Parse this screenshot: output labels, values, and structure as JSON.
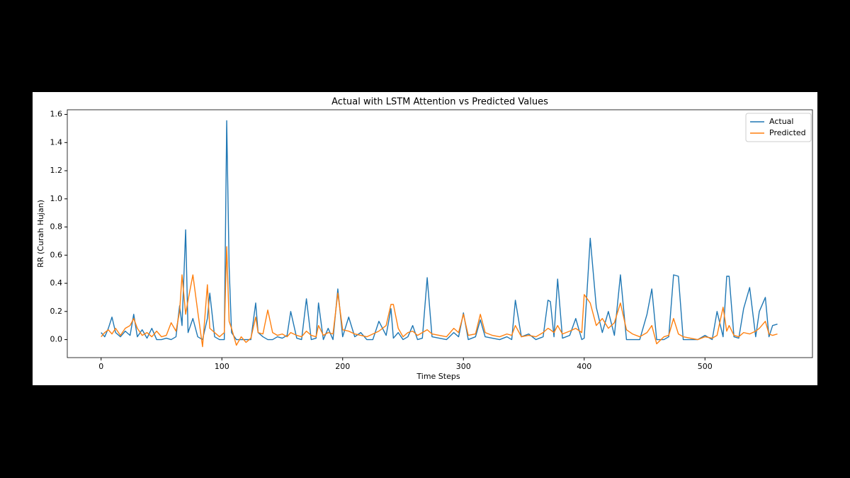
{
  "chart_data": {
    "type": "line",
    "title": "Actual with LSTM Attention vs Predicted Values",
    "x_label": "Time Steps",
    "y_label": "RR (Curah Hujan)",
    "xlim": [
      -28,
      589
    ],
    "ylim": [
      -0.128,
      1.633
    ],
    "xticks": [
      0,
      100,
      200,
      300,
      400,
      500
    ],
    "yticks": [
      {
        "value": 0,
        "label": "0.0"
      },
      0.2,
      0.4,
      0.6,
      0.8,
      {
        "value": 1,
        "label": "1.0"
      },
      1.2,
      1.4,
      1.6
    ],
    "grid": false,
    "legend": "upper right",
    "x": [
      0,
      3,
      6,
      9,
      12,
      16,
      20,
      24,
      27,
      30,
      34,
      38,
      42,
      46,
      50,
      54,
      58,
      62,
      65,
      67,
      70,
      72,
      76,
      80,
      84,
      88,
      90,
      94,
      98,
      102,
      104,
      106,
      108,
      112,
      116,
      120,
      124,
      128,
      130,
      134,
      138,
      142,
      146,
      150,
      154,
      157,
      162,
      166,
      170,
      174,
      178,
      180,
      184,
      188,
      192,
      196,
      200,
      205,
      210,
      215,
      220,
      225,
      230,
      236,
      240,
      242,
      246,
      250,
      254,
      258,
      262,
      266,
      270,
      274,
      280,
      286,
      292,
      296,
      300,
      304,
      310,
      314,
      318,
      324,
      330,
      336,
      340,
      343,
      348,
      354,
      360,
      366,
      370,
      372,
      375,
      378,
      382,
      388,
      393,
      398,
      400,
      405,
      410,
      415,
      420,
      425,
      430,
      435,
      440,
      446,
      452,
      456,
      460,
      466,
      470,
      474,
      478,
      482,
      488,
      494,
      500,
      506,
      510,
      515,
      518,
      520,
      524,
      528,
      532,
      537,
      542,
      545,
      550,
      553,
      556,
      560
    ],
    "series": [
      {
        "name": "Actual",
        "color": "#1f77b4",
        "values": [
          0.05,
          0.02,
          0.08,
          0.16,
          0.05,
          0.02,
          0.06,
          0.03,
          0.18,
          0.02,
          0.07,
          0.01,
          0.08,
          0.0,
          0.0,
          0.01,
          0.0,
          0.02,
          0.24,
          0.1,
          0.78,
          0.05,
          0.15,
          0.02,
          0.0,
          0.15,
          0.33,
          0.02,
          0.0,
          0.0,
          1.555,
          0.52,
          0.05,
          0.0,
          0.0,
          0.0,
          0.0,
          0.26,
          0.05,
          0.02,
          0.0,
          0.0,
          0.02,
          0.01,
          0.03,
          0.2,
          0.01,
          0.0,
          0.29,
          0.0,
          0.01,
          0.26,
          0.0,
          0.08,
          0.0,
          0.36,
          0.02,
          0.16,
          0.02,
          0.05,
          0.0,
          0.0,
          0.13,
          0.03,
          0.22,
          0.01,
          0.05,
          0.0,
          0.02,
          0.1,
          0.0,
          0.01,
          0.44,
          0.02,
          0.01,
          0.0,
          0.05,
          0.02,
          0.19,
          0.0,
          0.02,
          0.14,
          0.02,
          0.01,
          0.0,
          0.02,
          0.0,
          0.28,
          0.02,
          0.04,
          0.0,
          0.02,
          0.28,
          0.27,
          0.02,
          0.43,
          0.01,
          0.03,
          0.15,
          0.0,
          0.01,
          0.72,
          0.23,
          0.05,
          0.2,
          0.03,
          0.46,
          0.0,
          0.0,
          0.0,
          0.18,
          0.36,
          0.0,
          0.0,
          0.02,
          0.46,
          0.45,
          0.0,
          0.0,
          0.0,
          0.03,
          0.0,
          0.2,
          0.02,
          0.45,
          0.45,
          0.02,
          0.01,
          0.22,
          0.37,
          0.02,
          0.2,
          0.3,
          0.02,
          0.1,
          0.11
        ]
      },
      {
        "name": "Predicted",
        "color": "#ff7f0e",
        "values": [
          0.02,
          0.05,
          0.07,
          0.04,
          0.08,
          0.03,
          0.08,
          0.1,
          0.15,
          0.08,
          0.03,
          0.05,
          0.02,
          0.06,
          0.02,
          0.03,
          0.12,
          0.06,
          0.2,
          0.46,
          0.18,
          0.28,
          0.46,
          0.2,
          -0.05,
          0.39,
          0.08,
          0.05,
          0.02,
          0.05,
          0.66,
          0.13,
          0.08,
          -0.04,
          0.02,
          -0.02,
          0.01,
          0.16,
          0.05,
          0.04,
          0.21,
          0.05,
          0.03,
          0.04,
          0.02,
          0.05,
          0.03,
          0.02,
          0.06,
          0.03,
          0.02,
          0.1,
          0.03,
          0.05,
          0.04,
          0.33,
          0.07,
          0.06,
          0.04,
          0.03,
          0.02,
          0.04,
          0.06,
          0.1,
          0.25,
          0.25,
          0.08,
          0.02,
          0.05,
          0.06,
          0.03,
          0.05,
          0.07,
          0.04,
          0.03,
          0.02,
          0.08,
          0.05,
          0.18,
          0.03,
          0.04,
          0.18,
          0.05,
          0.03,
          0.02,
          0.04,
          0.03,
          0.1,
          0.02,
          0.03,
          0.02,
          0.05,
          0.08,
          0.07,
          0.05,
          0.1,
          0.04,
          0.06,
          0.08,
          0.05,
          0.32,
          0.26,
          0.1,
          0.15,
          0.08,
          0.12,
          0.26,
          0.07,
          0.04,
          0.02,
          0.05,
          0.1,
          -0.03,
          0.02,
          0.03,
          0.15,
          0.04,
          0.02,
          0.01,
          0.0,
          0.02,
          0.01,
          0.03,
          0.23,
          0.06,
          0.1,
          0.03,
          0.02,
          0.05,
          0.04,
          0.06,
          0.08,
          0.13,
          0.04,
          0.03,
          0.04
        ]
      }
    ]
  }
}
